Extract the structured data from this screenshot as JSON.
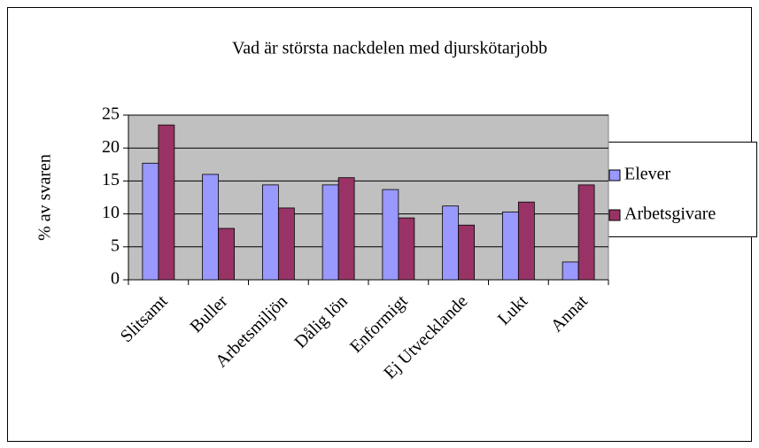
{
  "chart_data": {
    "type": "bar",
    "title": "Vad är största nackdelen med djurskötarjobb",
    "y_label": "% av svaren",
    "categories": [
      "Slitsamt",
      "Buller",
      "Arbetsmiljön",
      "Dålig lön",
      "Enformigt",
      "Ej Utvecklande",
      "Lukt",
      "Annat"
    ],
    "series": [
      {
        "name": "Elever",
        "color": "#9999ff",
        "values": [
          17.7,
          16,
          14.4,
          14.4,
          13.7,
          11.2,
          10.3,
          2.7
        ]
      },
      {
        "name": "Arbetsgivare",
        "color": "#993366",
        "values": [
          23.5,
          7.8,
          10.9,
          15.5,
          9.4,
          8.3,
          11.8,
          14.4
        ]
      }
    ],
    "ylim": [
      0,
      25
    ],
    "yticks": [
      0,
      5,
      10,
      15,
      20,
      25
    ],
    "grid": true,
    "legend": "right",
    "plot_background": "#c0c0c0"
  }
}
